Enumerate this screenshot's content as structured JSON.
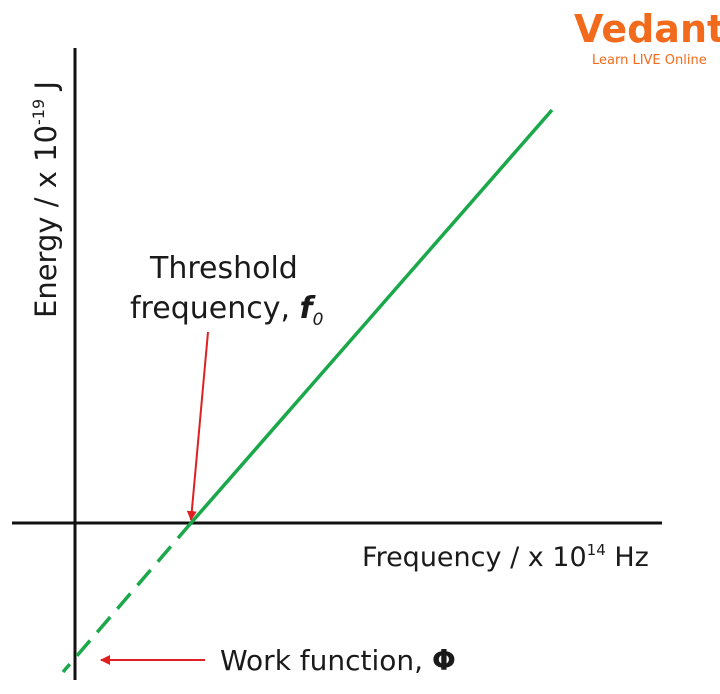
{
  "logo": {
    "name": "Vedantu",
    "tagline": "Learn LIVE Online"
  },
  "axes": {
    "y_label_main": "Energy / x 10",
    "y_label_exp": "-19",
    "y_label_unit": " J",
    "x_label_main": "Frequency / x 10",
    "x_label_exp": "14",
    "x_label_unit": " Hz"
  },
  "annotations": {
    "threshold_line1": "Threshold",
    "threshold_line2": "frequency, ",
    "threshold_symbol": "f",
    "threshold_subscript": "0",
    "work_function_text": "Work function, ",
    "work_function_symbol": "Φ"
  },
  "colors": {
    "graph_line": "#1aa84a",
    "arrow": "#e02020",
    "axis": "#111111",
    "logo": "#f26a1b"
  }
}
